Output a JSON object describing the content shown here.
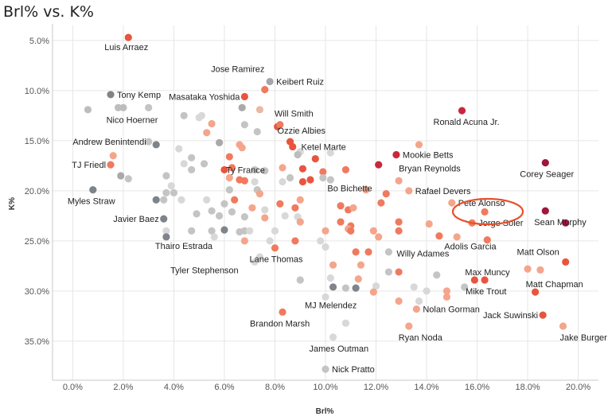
{
  "chart_data": {
    "type": "scatter",
    "title": "Brl% vs. K%",
    "xlabel": "Brl%",
    "ylabel": "K%",
    "xlim": [
      -0.8,
      20.8
    ],
    "ylim": [
      3.5,
      38.9
    ],
    "y_inverted": true,
    "x_ticks": [
      0,
      2,
      4,
      6,
      8,
      10,
      12,
      14,
      16,
      18,
      20
    ],
    "x_tick_labels": [
      "0.0%",
      "2.0%",
      "4.0%",
      "6.0%",
      "8.0%",
      "10.0%",
      "12.0%",
      "14.0%",
      "16.0%",
      "18.0%",
      "20.0%"
    ],
    "y_ticks": [
      5,
      10,
      15,
      20,
      25,
      30,
      35
    ],
    "y_tick_labels": [
      "5.0%",
      "10.0%",
      "15.0%",
      "20.0%",
      "25.0%",
      "30.0%",
      "35.0%"
    ],
    "grid": true,
    "color_scale": "gray (low Brl%) to red (high Brl%)",
    "highlight": {
      "name": "Jorge Soler",
      "annotation": "circled"
    },
    "points": [
      {
        "x": 2.2,
        "y": 4.7,
        "name": "Luis Arraez",
        "color": "#e8553e"
      },
      {
        "x": 7.8,
        "y": 9.1,
        "name": "Keibert Ruiz",
        "color": "#a3a7ab"
      },
      {
        "x": 6.8,
        "y": 10.6,
        "name": "Masataka Yoshida",
        "color": "#e8553e"
      },
      {
        "x": 7.6,
        "y": 9.9,
        "name": "",
        "color": "#f07a5e"
      },
      {
        "x": 1.5,
        "y": 10.4,
        "name": "Tony Kemp",
        "color": "#7e8489"
      },
      {
        "x": 0.6,
        "y": 11.9,
        "name": "",
        "color": "#bdbdbd"
      },
      {
        "x": 1.8,
        "y": 11.7,
        "name": "Nico Hoerner",
        "color": "#bdbdbd"
      },
      {
        "x": 2.0,
        "y": 11.7,
        "name": "",
        "color": "#bdbdbd"
      },
      {
        "x": 3.0,
        "y": 11.7,
        "name": "",
        "color": "#c4c4c4"
      },
      {
        "x": 4.4,
        "y": 12.5,
        "name": "",
        "color": "#c4c4c4"
      },
      {
        "x": 5.0,
        "y": 12.7,
        "name": "",
        "color": "#d8d8d8"
      },
      {
        "x": 5.1,
        "y": 12.5,
        "name": "",
        "color": "#d8d8d8"
      },
      {
        "x": 6.7,
        "y": 11.7,
        "name": "",
        "color": "#a9a9a9"
      },
      {
        "x": 7.4,
        "y": 11.9,
        "name": "",
        "color": "#eab8a8"
      },
      {
        "x": 8.1,
        "y": 13.6,
        "name": "",
        "color": "#e8553e"
      },
      {
        "x": 8.2,
        "y": 13.4,
        "name": "Will Smith",
        "color": "#f07a5e"
      },
      {
        "x": 5.5,
        "y": 13.3,
        "name": "",
        "color": "#f4a58c"
      },
      {
        "x": 6.8,
        "y": 13.4,
        "name": "",
        "color": "#c4c4c4"
      },
      {
        "x": 7.3,
        "y": 14.1,
        "name": "",
        "color": "#c4c4c4"
      },
      {
        "x": 5.3,
        "y": 14.2,
        "name": "",
        "color": "#f4a58c"
      },
      {
        "x": 15.4,
        "y": 12.0,
        "name": "Ronald Acuna Jr.",
        "color": "#c8283c"
      },
      {
        "x": 3.0,
        "y": 15.1,
        "name": "Andrew Benintendi",
        "color": "#c4c4c4"
      },
      {
        "x": 3.3,
        "y": 15.4,
        "name": "",
        "color": "#7e8489"
      },
      {
        "x": 4.2,
        "y": 15.8,
        "name": "",
        "color": "#d8d8d8"
      },
      {
        "x": 5.8,
        "y": 15.2,
        "name": "",
        "color": "#a9a9a9"
      },
      {
        "x": 6.6,
        "y": 15.4,
        "name": "",
        "color": "#f4a58c"
      },
      {
        "x": 6.7,
        "y": 15.7,
        "name": "",
        "color": "#f4a58c"
      },
      {
        "x": 8.6,
        "y": 15.1,
        "name": "Ozzie Albies",
        "color": "#e8553e"
      },
      {
        "x": 8.7,
        "y": 15.6,
        "name": "",
        "color": "#e8553e"
      },
      {
        "x": 9.0,
        "y": 16.1,
        "name": "",
        "color": "#d8d8d8"
      },
      {
        "x": 8.9,
        "y": 16.4,
        "name": "",
        "color": "#bdbdbd"
      },
      {
        "x": 9.6,
        "y": 16.8,
        "name": "",
        "color": "#e8553e"
      },
      {
        "x": 10.2,
        "y": 16.2,
        "name": "",
        "color": "#d8d8d8"
      },
      {
        "x": 6.2,
        "y": 16.6,
        "name": "",
        "color": "#f07a5e"
      },
      {
        "x": 4.7,
        "y": 16.7,
        "name": "",
        "color": "#c4c4c4"
      },
      {
        "x": 13.7,
        "y": 15.4,
        "name": "",
        "color": "#f4a58c"
      },
      {
        "x": 12.8,
        "y": 16.4,
        "name": "Mookie Betts",
        "color": "#c8283c"
      },
      {
        "x": 1.6,
        "y": 16.5,
        "name": "",
        "color": "#f4a58c"
      },
      {
        "x": 1.5,
        "y": 17.4,
        "name": "TJ Friedl",
        "color": "#f07a5e"
      },
      {
        "x": 4.4,
        "y": 17.3,
        "name": "",
        "color": "#d8d8d8"
      },
      {
        "x": 4.7,
        "y": 17.9,
        "name": "",
        "color": "#c4c4c4"
      },
      {
        "x": 5.2,
        "y": 17.3,
        "name": "",
        "color": "#c4c4c4"
      },
      {
        "x": 6.0,
        "y": 17.9,
        "name": "",
        "color": "#e8553e"
      },
      {
        "x": 6.3,
        "y": 17.7,
        "name": "",
        "color": "#f07a5e"
      },
      {
        "x": 7.2,
        "y": 17.9,
        "name": "",
        "color": "#c4c4c4"
      },
      {
        "x": 7.6,
        "y": 18.0,
        "name": "",
        "color": "#c4c4c4"
      },
      {
        "x": 8.3,
        "y": 17.7,
        "name": "",
        "color": "#f4a58c"
      },
      {
        "x": 9.1,
        "y": 17.8,
        "name": "",
        "color": "#e8553e"
      },
      {
        "x": 10.8,
        "y": 17.9,
        "name": "",
        "color": "#f07a5e"
      },
      {
        "x": 9.9,
        "y": 18.1,
        "name": "",
        "color": "#f07a5e"
      },
      {
        "x": 12.1,
        "y": 17.4,
        "name": "",
        "color": "#c8283c"
      },
      {
        "x": 12.9,
        "y": 19.0,
        "name": "Bryan Reynolds",
        "color": "#f4a58c"
      },
      {
        "x": 18.7,
        "y": 17.2,
        "name": "Corey Seager",
        "color": "#a0153e"
      },
      {
        "x": 1.9,
        "y": 18.5,
        "name": "",
        "color": "#a9a9a9"
      },
      {
        "x": 2.2,
        "y": 18.8,
        "name": "",
        "color": "#c4c4c4"
      },
      {
        "x": 3.7,
        "y": 18.5,
        "name": "",
        "color": "#c4c4c4"
      },
      {
        "x": 6.2,
        "y": 18.7,
        "name": "",
        "color": "#f4a58c"
      },
      {
        "x": 6.6,
        "y": 18.9,
        "name": "",
        "color": "#f07a5e"
      },
      {
        "x": 6.8,
        "y": 19.0,
        "name": "",
        "color": "#f07a5e"
      },
      {
        "x": 7.2,
        "y": 19.1,
        "name": "",
        "color": "#d8d8d8"
      },
      {
        "x": 8.3,
        "y": 19.1,
        "name": "",
        "color": "#d8d8d8"
      },
      {
        "x": 8.6,
        "y": 18.7,
        "name": "",
        "color": "#c4c4c4"
      },
      {
        "x": 9.1,
        "y": 19.1,
        "name": "Bo Bichette",
        "color": "#e8553e"
      },
      {
        "x": 9.4,
        "y": 18.9,
        "name": "",
        "color": "#e8553e"
      },
      {
        "x": 9.9,
        "y": 18.7,
        "name": "",
        "color": "#c4c4c4"
      },
      {
        "x": 10.2,
        "y": 18.9,
        "name": "",
        "color": "#c4c4c4"
      },
      {
        "x": 0.8,
        "y": 19.9,
        "name": "Myles Straw",
        "color": "#7e8489"
      },
      {
        "x": 3.9,
        "y": 19.5,
        "name": "",
        "color": "#d8d8d8"
      },
      {
        "x": 3.7,
        "y": 20.2,
        "name": "",
        "color": "#c4c4c4"
      },
      {
        "x": 4.0,
        "y": 20.2,
        "name": "",
        "color": "#c4c4c4"
      },
      {
        "x": 6.2,
        "y": 19.9,
        "name": "",
        "color": "#c4c4c4"
      },
      {
        "x": 7.3,
        "y": 19.9,
        "name": "",
        "color": "#c4c4c4"
      },
      {
        "x": 7.4,
        "y": 20.3,
        "name": "",
        "color": "#f4a58c"
      },
      {
        "x": 11.6,
        "y": 19.9,
        "name": "",
        "color": "#f4a58c"
      },
      {
        "x": 12.4,
        "y": 20.3,
        "name": "",
        "color": "#f07a5e"
      },
      {
        "x": 13.3,
        "y": 20.0,
        "name": "Rafael Devers",
        "color": "#f4a58c"
      },
      {
        "x": 3.3,
        "y": 20.9,
        "name": "",
        "color": "#7e8489"
      },
      {
        "x": 3.6,
        "y": 20.9,
        "name": "",
        "color": "#c4c4c4"
      },
      {
        "x": 4.3,
        "y": 20.9,
        "name": "",
        "color": "#d8d8d8"
      },
      {
        "x": 5.3,
        "y": 20.9,
        "name": "",
        "color": "#d8d8d8"
      },
      {
        "x": 5.5,
        "y": 22.0,
        "name": "",
        "color": "#c4c4c4"
      },
      {
        "x": 6.0,
        "y": 21.3,
        "name": "",
        "color": "#c4c4c4"
      },
      {
        "x": 6.4,
        "y": 20.9,
        "name": "",
        "color": "#f07a5e"
      },
      {
        "x": 7.1,
        "y": 21.7,
        "name": "",
        "color": "#f4a58c"
      },
      {
        "x": 7.6,
        "y": 21.9,
        "name": "",
        "color": "#d8d8d8"
      },
      {
        "x": 8.2,
        "y": 21.3,
        "name": "",
        "color": "#f07a5e"
      },
      {
        "x": 8.8,
        "y": 21.7,
        "name": "",
        "color": "#f07a5e"
      },
      {
        "x": 9.0,
        "y": 20.9,
        "name": "",
        "color": "#f4a58c"
      },
      {
        "x": 10.6,
        "y": 21.5,
        "name": "",
        "color": "#f07a5e"
      },
      {
        "x": 10.9,
        "y": 21.9,
        "name": "",
        "color": "#f07a5e"
      },
      {
        "x": 11.1,
        "y": 21.7,
        "name": "",
        "color": "#f4a58c"
      },
      {
        "x": 12.2,
        "y": 21.2,
        "name": "",
        "color": "#f07a5e"
      },
      {
        "x": 15.0,
        "y": 21.2,
        "name": "Pete Alonso",
        "color": "#f4a58c"
      },
      {
        "x": 16.3,
        "y": 22.1,
        "name": "",
        "color": "#f07a5e"
      },
      {
        "x": 18.7,
        "y": 22.0,
        "name": "Sean Murphy",
        "color": "#a0153e"
      },
      {
        "x": 3.6,
        "y": 22.8,
        "name": "Javier Baez",
        "color": "#7e8489"
      },
      {
        "x": 4.9,
        "y": 22.3,
        "name": "",
        "color": "#c4c4c4"
      },
      {
        "x": 5.8,
        "y": 22.5,
        "name": "",
        "color": "#c4c4c4"
      },
      {
        "x": 6.3,
        "y": 22.1,
        "name": "",
        "color": "#c4c4c4"
      },
      {
        "x": 6.8,
        "y": 22.6,
        "name": "",
        "color": "#c4c4c4"
      },
      {
        "x": 7.6,
        "y": 22.7,
        "name": "",
        "color": "#f4a58c"
      },
      {
        "x": 8.4,
        "y": 22.5,
        "name": "",
        "color": "#d8d8d8"
      },
      {
        "x": 8.9,
        "y": 22.6,
        "name": "",
        "color": "#d8d8d8"
      },
      {
        "x": 9.0,
        "y": 23.1,
        "name": "",
        "color": "#f4a58c"
      },
      {
        "x": 10.6,
        "y": 23.1,
        "name": "",
        "color": "#f07a5e"
      },
      {
        "x": 11.0,
        "y": 23.5,
        "name": "",
        "color": "#f07a5e"
      },
      {
        "x": 10.9,
        "y": 23.8,
        "name": "",
        "color": "#f4a58c"
      },
      {
        "x": 12.9,
        "y": 23.1,
        "name": "",
        "color": "#f07a5e"
      },
      {
        "x": 14.1,
        "y": 23.3,
        "name": "",
        "color": "#f4a58c"
      },
      {
        "x": 15.8,
        "y": 23.2,
        "name": "Jorge Soler",
        "color": "#f07a5e"
      },
      {
        "x": 19.5,
        "y": 23.2,
        "name": "",
        "color": "#a0153e"
      },
      {
        "x": 3.7,
        "y": 24.0,
        "name": "",
        "color": "#d8d8d8"
      },
      {
        "x": 4.7,
        "y": 24.0,
        "name": "",
        "color": "#c4c4c4"
      },
      {
        "x": 5.5,
        "y": 24.0,
        "name": "",
        "color": "#c4c4c4"
      },
      {
        "x": 6.0,
        "y": 23.9,
        "name": "",
        "color": "#7e8489"
      },
      {
        "x": 6.6,
        "y": 24.1,
        "name": "",
        "color": "#c4c4c4"
      },
      {
        "x": 6.8,
        "y": 24.0,
        "name": "",
        "color": "#c4c4c4"
      },
      {
        "x": 7.0,
        "y": 24.0,
        "name": "",
        "color": "#d8d8d8"
      },
      {
        "x": 8.0,
        "y": 24.0,
        "name": "",
        "color": "#d8d8d8"
      },
      {
        "x": 10.0,
        "y": 24.0,
        "name": "",
        "color": "#f4a58c"
      },
      {
        "x": 11.0,
        "y": 24.0,
        "name": "",
        "color": "#f07a5e"
      },
      {
        "x": 11.9,
        "y": 24.0,
        "name": "",
        "color": "#f4a58c"
      },
      {
        "x": 12.9,
        "y": 24.0,
        "name": "",
        "color": "#f07a5e"
      },
      {
        "x": 3.7,
        "y": 24.6,
        "name": "Thairo Estrada",
        "color": "#7e8489"
      },
      {
        "x": 5.6,
        "y": 24.6,
        "name": "",
        "color": "#d8d8d8"
      },
      {
        "x": 6.8,
        "y": 25.0,
        "name": "",
        "color": "#f4a58c"
      },
      {
        "x": 7.8,
        "y": 25.0,
        "name": "",
        "color": "#d8d8d8"
      },
      {
        "x": 8.8,
        "y": 25.0,
        "name": "",
        "color": "#f07a5e"
      },
      {
        "x": 9.8,
        "y": 25.0,
        "name": "",
        "color": "#d8d8d8"
      },
      {
        "x": 12.1,
        "y": 24.6,
        "name": "",
        "color": "#f4a58c"
      },
      {
        "x": 14.5,
        "y": 24.5,
        "name": "",
        "color": "#f07a5e"
      },
      {
        "x": 15.2,
        "y": 24.6,
        "name": "",
        "color": "#f4a58c"
      },
      {
        "x": 16.4,
        "y": 24.9,
        "name": "",
        "color": "#f07a5e"
      },
      {
        "x": 8.0,
        "y": 25.7,
        "name": "Lane Thomas",
        "color": "#f07a5e"
      },
      {
        "x": 10.0,
        "y": 25.6,
        "name": "",
        "color": "#d8d8d8"
      },
      {
        "x": 7.4,
        "y": 26.6,
        "name": "",
        "color": "#d8d8d8"
      },
      {
        "x": 10.3,
        "y": 27.4,
        "name": "",
        "color": "#f4a58c"
      },
      {
        "x": 11.2,
        "y": 26.1,
        "name": "",
        "color": "#f07a5e"
      },
      {
        "x": 11.7,
        "y": 26.1,
        "name": "",
        "color": "#f07a5e"
      },
      {
        "x": 12.5,
        "y": 26.1,
        "name": "Willy Adames",
        "color": "#c4c4c4"
      },
      {
        "x": 7.2,
        "y": 27.1,
        "name": "Tyler Stephenson",
        "color": "#d8d8d8"
      },
      {
        "x": 11.4,
        "y": 27.4,
        "name": "",
        "color": "#f4a58c"
      },
      {
        "x": 12.5,
        "y": 28.1,
        "name": "",
        "color": "#c4c4c4"
      },
      {
        "x": 12.9,
        "y": 28.1,
        "name": "",
        "color": "#f07a5e"
      },
      {
        "x": 14.4,
        "y": 28.4,
        "name": "",
        "color": "#c4c4c4"
      },
      {
        "x": 15.9,
        "y": 28.9,
        "name": "Max Muncy",
        "color": "#e8553e"
      },
      {
        "x": 16.3,
        "y": 28.9,
        "name": "",
        "color": "#e8553e"
      },
      {
        "x": 18.0,
        "y": 27.8,
        "name": "",
        "color": "#f4a58c"
      },
      {
        "x": 18.5,
        "y": 27.9,
        "name": "",
        "color": "#f4a58c"
      },
      {
        "x": 19.5,
        "y": 27.1,
        "name": "Matt Olson",
        "color": "#e8553e"
      },
      {
        "x": 9.0,
        "y": 28.9,
        "name": "",
        "color": "#c4c4c4"
      },
      {
        "x": 10.2,
        "y": 28.7,
        "name": "",
        "color": "#d8d8d8"
      },
      {
        "x": 11.3,
        "y": 28.8,
        "name": "",
        "color": "#f4a58c"
      },
      {
        "x": 10.3,
        "y": 29.6,
        "name": "",
        "color": "#7e8489"
      },
      {
        "x": 10.8,
        "y": 29.7,
        "name": "",
        "color": "#c4c4c4"
      },
      {
        "x": 11.2,
        "y": 29.7,
        "name": "",
        "color": "#7e8489"
      },
      {
        "x": 12.0,
        "y": 29.5,
        "name": "",
        "color": "#d8d8d8"
      },
      {
        "x": 13.5,
        "y": 29.6,
        "name": "",
        "color": "#d8d8d8"
      },
      {
        "x": 14.0,
        "y": 30.0,
        "name": "",
        "color": "#d8d8d8"
      },
      {
        "x": 14.8,
        "y": 30.0,
        "name": "",
        "color": "#f4a58c"
      },
      {
        "x": 15.5,
        "y": 29.6,
        "name": "",
        "color": "#c4c4c4"
      },
      {
        "x": 18.3,
        "y": 30.1,
        "name": "Matt Chapman",
        "color": "#e8553e"
      },
      {
        "x": 11.9,
        "y": 30.1,
        "name": "",
        "color": "#f4a58c"
      },
      {
        "x": 10.0,
        "y": 30.6,
        "name": "MJ Melendez",
        "color": "#d8d8d8"
      },
      {
        "x": 12.9,
        "y": 31.0,
        "name": "",
        "color": "#f4a58c"
      },
      {
        "x": 13.7,
        "y": 31.0,
        "name": "",
        "color": "#d8d8d8"
      },
      {
        "x": 14.8,
        "y": 30.6,
        "name": "",
        "color": "#f4a58c"
      },
      {
        "x": 13.6,
        "y": 31.8,
        "name": "Nolan Gorman",
        "color": "#f4a58c"
      },
      {
        "x": 8.3,
        "y": 32.1,
        "name": "Brandon Marsh",
        "color": "#f07a5e"
      },
      {
        "x": 18.6,
        "y": 32.4,
        "name": "Jack Suwinski",
        "color": "#e8553e"
      },
      {
        "x": 10.8,
        "y": 33.2,
        "name": "",
        "color": "#d8d8d8"
      },
      {
        "x": 13.3,
        "y": 33.5,
        "name": "Ryan Noda",
        "color": "#f4a58c"
      },
      {
        "x": 19.4,
        "y": 33.5,
        "name": "Jake Burger",
        "color": "#f4a58c"
      },
      {
        "x": 10.3,
        "y": 34.6,
        "name": "James Outman",
        "color": "#d8d8d8"
      },
      {
        "x": 10.0,
        "y": 37.8,
        "name": "Nick Pratto",
        "color": "#c4c4c4"
      }
    ]
  }
}
